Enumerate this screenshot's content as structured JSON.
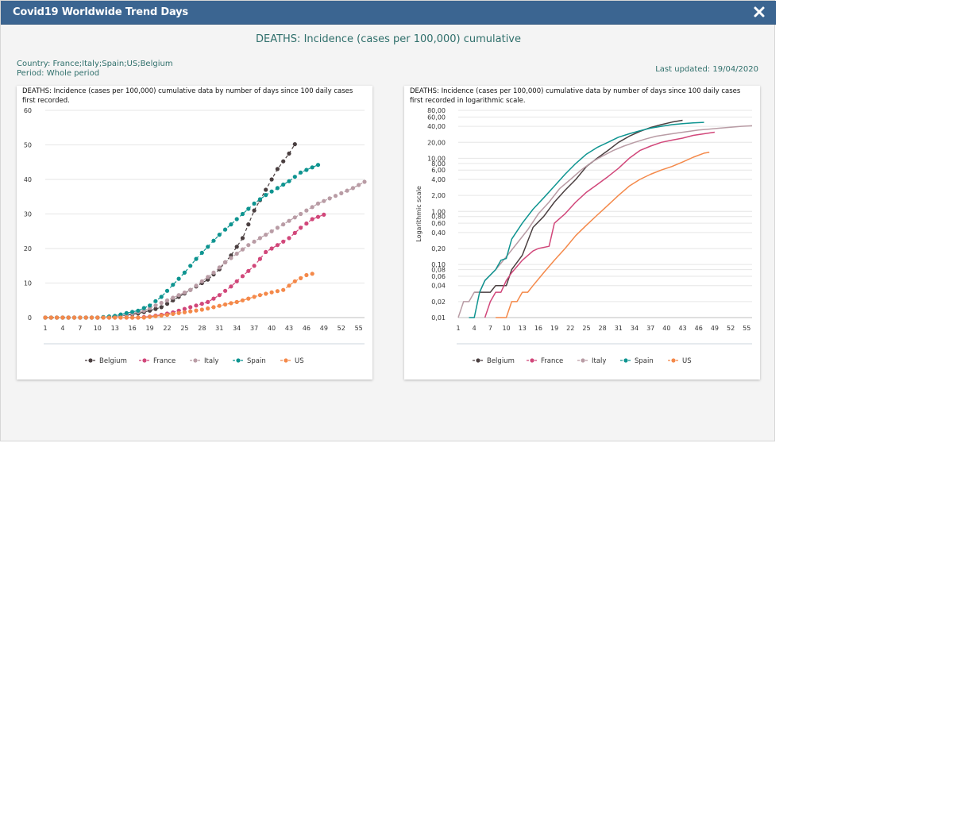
{
  "window": {
    "title": "Covid19 Worldwide Trend Days",
    "close_icon": "close-icon"
  },
  "header": {
    "heading": "DEATHS: Incidence (cases per 100,000) cumulative",
    "country": "Country: France;Italy;Spain;US;Belgium",
    "period": "Period: Whole period",
    "last_updated": "Last updated: 19/04/2020"
  },
  "colors": {
    "titlebar": "#3b6591",
    "heading_text": "#2f6f6b",
    "Belgium": "#4a3f40",
    "France": "#d1477a",
    "Italy": "#b99ca5",
    "Spain": "#0e9490",
    "US": "#f4894a"
  },
  "chart_data": [
    {
      "type": "scatter",
      "title": "DEATHS: Incidence (cases per 100,000) cumulative data by number of days since 100 daily cases first recorded.",
      "xlabel": "",
      "ylabel": "",
      "xlim": [
        1,
        56
      ],
      "ylim": [
        0,
        60
      ],
      "x_ticks": [
        "1",
        "4",
        "7",
        "10",
        "13",
        "16",
        "19",
        "22",
        "25",
        "28",
        "31",
        "34",
        "37",
        "40",
        "43",
        "46",
        "49",
        "52",
        "55"
      ],
      "y_ticks": [
        "0",
        "10",
        "20",
        "30",
        "40",
        "50",
        "60"
      ],
      "grid": true,
      "legend_position": "bottom",
      "series": [
        {
          "name": "Belgium",
          "values": [
            [
              1,
              0
            ],
            [
              5,
              0
            ],
            [
              10,
              0
            ],
            [
              13,
              0.3
            ],
            [
              15,
              0.7
            ],
            [
              17,
              1.2
            ],
            [
              19,
              2
            ],
            [
              21,
              3
            ],
            [
              23,
              5
            ],
            [
              25,
              7
            ],
            [
              27,
              9
            ],
            [
              29,
              11
            ],
            [
              31,
              14
            ],
            [
              33,
              18
            ],
            [
              35,
              23
            ],
            [
              37,
              31
            ],
            [
              39,
              37
            ],
            [
              41,
              43
            ],
            [
              43,
              47.5
            ],
            [
              44,
              50.2
            ]
          ]
        },
        {
          "name": "France",
          "values": [
            [
              1,
              0
            ],
            [
              10,
              0
            ],
            [
              17,
              0
            ],
            [
              19,
              0.3
            ],
            [
              21,
              0.8
            ],
            [
              23,
              1.5
            ],
            [
              25,
              2.5
            ],
            [
              27,
              3.5
            ],
            [
              29,
              4.5
            ],
            [
              31,
              6.5
            ],
            [
              33,
              9
            ],
            [
              35,
              12
            ],
            [
              37,
              15
            ],
            [
              39,
              19
            ],
            [
              41,
              21
            ],
            [
              43,
              23
            ],
            [
              45,
              26
            ],
            [
              47,
              28.5
            ],
            [
              49,
              29.8
            ]
          ]
        },
        {
          "name": "Italy",
          "values": [
            [
              1,
              0
            ],
            [
              10,
              0
            ],
            [
              14,
              0.5
            ],
            [
              16,
              1.2
            ],
            [
              18,
              2
            ],
            [
              20,
              3.5
            ],
            [
              22,
              5
            ],
            [
              24,
              6.5
            ],
            [
              26,
              8
            ],
            [
              28,
              10.5
            ],
            [
              30,
              13
            ],
            [
              32,
              16
            ],
            [
              34,
              18.5
            ],
            [
              36,
              21
            ],
            [
              38,
              23
            ],
            [
              40,
              25
            ],
            [
              42,
              27
            ],
            [
              44,
              29
            ],
            [
              46,
              31
            ],
            [
              48,
              33
            ],
            [
              50,
              34.5
            ],
            [
              52,
              36
            ],
            [
              54,
              37.5
            ],
            [
              56,
              39.3
            ]
          ]
        },
        {
          "name": "Spain",
          "values": [
            [
              1,
              0
            ],
            [
              10,
              0
            ],
            [
              13,
              0.5
            ],
            [
              15,
              1.3
            ],
            [
              17,
              2
            ],
            [
              19,
              3.5
            ],
            [
              21,
              6
            ],
            [
              23,
              9.5
            ],
            [
              25,
              13
            ],
            [
              27,
              17
            ],
            [
              29,
              20.5
            ],
            [
              31,
              24
            ],
            [
              33,
              27
            ],
            [
              35,
              30
            ],
            [
              37,
              33
            ],
            [
              39,
              35.5
            ],
            [
              41,
              37.5
            ],
            [
              43,
              39.5
            ],
            [
              45,
              42
            ],
            [
              47,
              43.5
            ],
            [
              48,
              44.2
            ]
          ]
        },
        {
          "name": "US",
          "values": [
            [
              1,
              0
            ],
            [
              10,
              0
            ],
            [
              18,
              0
            ],
            [
              20,
              0.4
            ],
            [
              22,
              0.8
            ],
            [
              24,
              1.3
            ],
            [
              26,
              1.8
            ],
            [
              28,
              2.3
            ],
            [
              30,
              3
            ],
            [
              32,
              3.8
            ],
            [
              34,
              4.5
            ],
            [
              36,
              5.5
            ],
            [
              38,
              6.5
            ],
            [
              40,
              7.3
            ],
            [
              42,
              8
            ],
            [
              44,
              10.5
            ],
            [
              46,
              12.3
            ],
            [
              47,
              12.7
            ]
          ]
        }
      ]
    },
    {
      "type": "line",
      "title": "DEATHS: Incidence (cases per 100,000) cumulative data by number of days since 100 daily cases first recorded in logarithmic scale.",
      "xlabel": "",
      "ylabel": "Logarithmic scale",
      "y_scale": "log",
      "xlim": [
        1,
        56
      ],
      "ylim": [
        0.01,
        80
      ],
      "x_ticks": [
        "1",
        "4",
        "7",
        "10",
        "13",
        "16",
        "19",
        "22",
        "25",
        "28",
        "31",
        "34",
        "37",
        "40",
        "43",
        "46",
        "49",
        "52",
        "55"
      ],
      "y_ticks": [
        "0,01",
        "0,02",
        "0,04",
        "0,06",
        "0,08",
        "0,10",
        "0,20",
        "0,40",
        "0,60",
        "0,80",
        "1,00",
        "2,00",
        "4,00",
        "6,00",
        "8,00",
        "10,00",
        "20,00",
        "40,00",
        "60,00",
        "80,00"
      ],
      "grid": true,
      "legend_position": "bottom",
      "series": [
        {
          "name": "Belgium",
          "values": [
            [
              4,
              0.03
            ],
            [
              7,
              0.03
            ],
            [
              8,
              0.04
            ],
            [
              10,
              0.04
            ],
            [
              11,
              0.08
            ],
            [
              13,
              0.15
            ],
            [
              15,
              0.5
            ],
            [
              17,
              0.8
            ],
            [
              19,
              1.5
            ],
            [
              21,
              2.5
            ],
            [
              23,
              4
            ],
            [
              25,
              7
            ],
            [
              27,
              10
            ],
            [
              29,
              14
            ],
            [
              31,
              20
            ],
            [
              33,
              26
            ],
            [
              35,
              32
            ],
            [
              37,
              38
            ],
            [
              39,
              43
            ],
            [
              41,
              48
            ],
            [
              43,
              52
            ]
          ]
        },
        {
          "name": "France",
          "values": [
            [
              6,
              0.01
            ],
            [
              7,
              0.02
            ],
            [
              8,
              0.03
            ],
            [
              9,
              0.03
            ],
            [
              10,
              0.05
            ],
            [
              11,
              0.07
            ],
            [
              13,
              0.12
            ],
            [
              15,
              0.18
            ],
            [
              16,
              0.2
            ],
            [
              18,
              0.22
            ],
            [
              19,
              0.6
            ],
            [
              21,
              0.9
            ],
            [
              23,
              1.5
            ],
            [
              25,
              2.3
            ],
            [
              27,
              3.2
            ],
            [
              29,
              4.5
            ],
            [
              31,
              6.5
            ],
            [
              33,
              10
            ],
            [
              35,
              14
            ],
            [
              37,
              17
            ],
            [
              39,
              20
            ],
            [
              41,
              22
            ],
            [
              43,
              24
            ],
            [
              45,
              27
            ],
            [
              47,
              29
            ],
            [
              49,
              31
            ]
          ]
        },
        {
          "name": "Italy",
          "values": [
            [
              1,
              0.01
            ],
            [
              2,
              0.02
            ],
            [
              3,
              0.02
            ],
            [
              4,
              0.03
            ],
            [
              5,
              0.03
            ],
            [
              6,
              0.05
            ],
            [
              8,
              0.08
            ],
            [
              10,
              0.14
            ],
            [
              12,
              0.25
            ],
            [
              14,
              0.45
            ],
            [
              16,
              0.9
            ],
            [
              18,
              1.5
            ],
            [
              20,
              2.7
            ],
            [
              22,
              4
            ],
            [
              24,
              6
            ],
            [
              26,
              8.5
            ],
            [
              28,
              11
            ],
            [
              30,
              14
            ],
            [
              32,
              17
            ],
            [
              34,
              20
            ],
            [
              36,
              23
            ],
            [
              38,
              26
            ],
            [
              40,
              28
            ],
            [
              42,
              30
            ],
            [
              44,
              32
            ],
            [
              46,
              34
            ],
            [
              48,
              35.5
            ],
            [
              50,
              37
            ],
            [
              52,
              38.5
            ],
            [
              54,
              40
            ],
            [
              56,
              41
            ]
          ]
        },
        {
          "name": "Spain",
          "values": [
            [
              3,
              0.01
            ],
            [
              4,
              0.01
            ],
            [
              5,
              0.03
            ],
            [
              6,
              0.05
            ],
            [
              8,
              0.08
            ],
            [
              9,
              0.12
            ],
            [
              10,
              0.13
            ],
            [
              11,
              0.3
            ],
            [
              13,
              0.6
            ],
            [
              15,
              1.1
            ],
            [
              17,
              1.8
            ],
            [
              19,
              3
            ],
            [
              21,
              5
            ],
            [
              23,
              8
            ],
            [
              25,
              12
            ],
            [
              27,
              16
            ],
            [
              29,
              20
            ],
            [
              31,
              25
            ],
            [
              33,
              29
            ],
            [
              35,
              33
            ],
            [
              37,
              37
            ],
            [
              39,
              40
            ],
            [
              41,
              43
            ],
            [
              43,
              45
            ],
            [
              45,
              46.5
            ],
            [
              47,
              47.5
            ]
          ]
        },
        {
          "name": "US",
          "values": [
            [
              8,
              0.01
            ],
            [
              10,
              0.01
            ],
            [
              11,
              0.02
            ],
            [
              12,
              0.02
            ],
            [
              13,
              0.03
            ],
            [
              14,
              0.03
            ],
            [
              15,
              0.04
            ],
            [
              17,
              0.07
            ],
            [
              19,
              0.12
            ],
            [
              21,
              0.2
            ],
            [
              23,
              0.35
            ],
            [
              25,
              0.55
            ],
            [
              27,
              0.85
            ],
            [
              29,
              1.3
            ],
            [
              31,
              2
            ],
            [
              33,
              3
            ],
            [
              35,
              4
            ],
            [
              37,
              5
            ],
            [
              39,
              6
            ],
            [
              41,
              7
            ],
            [
              43,
              8.5
            ],
            [
              45,
              10.5
            ],
            [
              47,
              12.5
            ],
            [
              48,
              13
            ]
          ]
        }
      ]
    }
  ]
}
